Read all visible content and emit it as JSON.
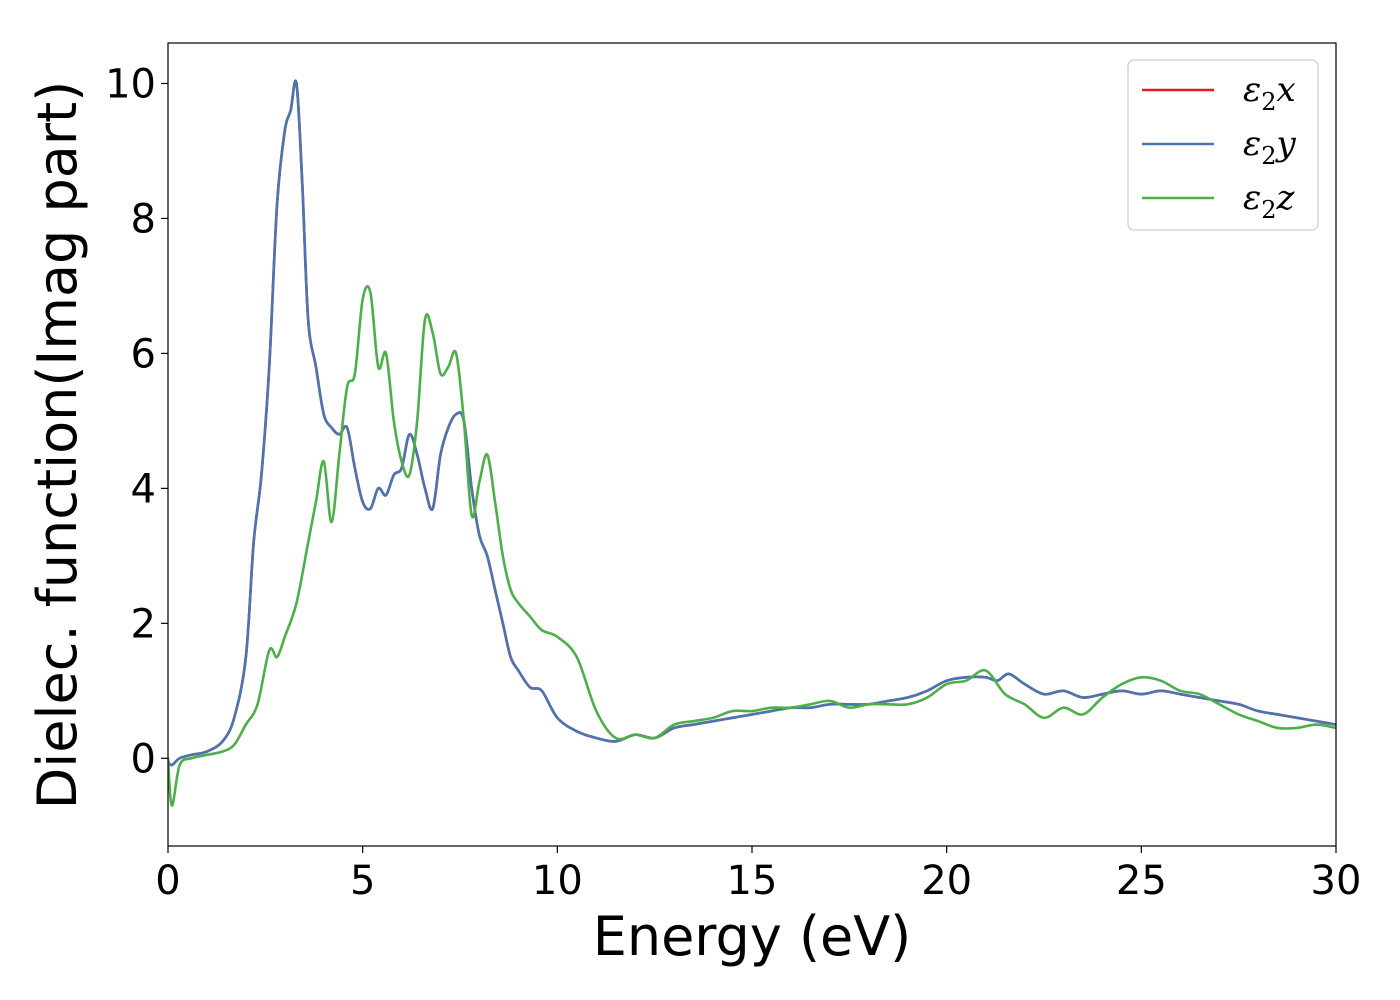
{
  "chart_data": {
    "type": "line",
    "title": "",
    "xlabel": "Energy (eV)",
    "ylabel": "Dielec. function(Imag part)",
    "xlim": [
      0,
      30
    ],
    "ylim": [
      -1.3,
      10.6
    ],
    "xticks": [
      0,
      5,
      10,
      15,
      20,
      25,
      30
    ],
    "yticks": [
      0,
      2,
      4,
      6,
      8,
      10
    ],
    "grid": false,
    "legend_position": "top-right",
    "series": [
      {
        "name": "ε2x",
        "label_base": "ε",
        "label_sub": "2",
        "label_var": "x",
        "color": "#e41a1c",
        "x": [
          0,
          0.1,
          0.3,
          0.6,
          1.0,
          1.4,
          1.7,
          2.0,
          2.2,
          2.4,
          2.6,
          2.8,
          3.0,
          3.15,
          3.3,
          3.45,
          3.6,
          3.8,
          4.0,
          4.2,
          4.4,
          4.6,
          4.8,
          5.0,
          5.2,
          5.4,
          5.6,
          5.8,
          6.0,
          6.2,
          6.4,
          6.6,
          6.8,
          7.0,
          7.2,
          7.4,
          7.6,
          7.8,
          8.0,
          8.2,
          8.4,
          8.6,
          8.8,
          9.0,
          9.3,
          9.6,
          10.0,
          10.5,
          11.0,
          11.5,
          12.0,
          12.5,
          13.0,
          13.5,
          14.0,
          14.5,
          15.0,
          15.5,
          16.0,
          16.5,
          17.0,
          17.5,
          18.0,
          18.5,
          19.0,
          19.5,
          20.0,
          20.5,
          21.0,
          21.3,
          21.6,
          22.0,
          22.5,
          23.0,
          23.5,
          24.0,
          24.5,
          25.0,
          25.5,
          26.0,
          26.5,
          27.0,
          27.5,
          28.0,
          28.5,
          29.0,
          29.5,
          30.0
        ],
        "values": [
          -0.05,
          -0.1,
          0.0,
          0.05,
          0.1,
          0.25,
          0.6,
          1.5,
          3.2,
          4.2,
          5.8,
          8.2,
          9.3,
          9.6,
          10.0,
          8.5,
          6.5,
          5.8,
          5.1,
          4.9,
          4.8,
          4.9,
          4.3,
          3.8,
          3.7,
          4.0,
          3.9,
          4.2,
          4.3,
          4.8,
          4.5,
          4.0,
          3.7,
          4.5,
          4.9,
          5.1,
          5.0,
          4.0,
          3.3,
          3.0,
          2.5,
          2.0,
          1.5,
          1.3,
          1.05,
          1.0,
          0.6,
          0.4,
          0.3,
          0.25,
          0.35,
          0.3,
          0.45,
          0.5,
          0.55,
          0.6,
          0.65,
          0.7,
          0.75,
          0.75,
          0.8,
          0.8,
          0.8,
          0.85,
          0.9,
          1.0,
          1.15,
          1.2,
          1.2,
          1.15,
          1.25,
          1.1,
          0.95,
          1.0,
          0.9,
          0.95,
          1.0,
          0.95,
          1.0,
          0.95,
          0.9,
          0.85,
          0.8,
          0.7,
          0.65,
          0.6,
          0.55,
          0.5
        ]
      },
      {
        "name": "ε2y",
        "label_base": "ε",
        "label_sub": "2",
        "label_var": "y",
        "color": "#4a75b0",
        "x": [
          0,
          0.1,
          0.3,
          0.6,
          1.0,
          1.4,
          1.7,
          2.0,
          2.2,
          2.4,
          2.6,
          2.8,
          3.0,
          3.15,
          3.3,
          3.45,
          3.6,
          3.8,
          4.0,
          4.2,
          4.4,
          4.6,
          4.8,
          5.0,
          5.2,
          5.4,
          5.6,
          5.8,
          6.0,
          6.2,
          6.4,
          6.6,
          6.8,
          7.0,
          7.2,
          7.4,
          7.6,
          7.8,
          8.0,
          8.2,
          8.4,
          8.6,
          8.8,
          9.0,
          9.3,
          9.6,
          10.0,
          10.5,
          11.0,
          11.5,
          12.0,
          12.5,
          13.0,
          13.5,
          14.0,
          14.5,
          15.0,
          15.5,
          16.0,
          16.5,
          17.0,
          17.5,
          18.0,
          18.5,
          19.0,
          19.5,
          20.0,
          20.5,
          21.0,
          21.3,
          21.6,
          22.0,
          22.5,
          23.0,
          23.5,
          24.0,
          24.5,
          25.0,
          25.5,
          26.0,
          26.5,
          27.0,
          27.5,
          28.0,
          28.5,
          29.0,
          29.5,
          30.0
        ],
        "values": [
          -0.05,
          -0.1,
          0.0,
          0.05,
          0.1,
          0.25,
          0.6,
          1.5,
          3.2,
          4.2,
          5.8,
          8.2,
          9.3,
          9.6,
          10.0,
          8.5,
          6.5,
          5.8,
          5.1,
          4.9,
          4.8,
          4.9,
          4.3,
          3.8,
          3.7,
          4.0,
          3.9,
          4.2,
          4.3,
          4.8,
          4.5,
          4.0,
          3.7,
          4.5,
          4.9,
          5.1,
          5.0,
          4.0,
          3.3,
          3.0,
          2.5,
          2.0,
          1.5,
          1.3,
          1.05,
          1.0,
          0.6,
          0.4,
          0.3,
          0.25,
          0.35,
          0.3,
          0.45,
          0.5,
          0.55,
          0.6,
          0.65,
          0.7,
          0.75,
          0.75,
          0.8,
          0.8,
          0.8,
          0.85,
          0.9,
          1.0,
          1.15,
          1.2,
          1.2,
          1.15,
          1.25,
          1.1,
          0.95,
          1.0,
          0.9,
          0.95,
          1.0,
          0.95,
          1.0,
          0.95,
          0.9,
          0.85,
          0.8,
          0.7,
          0.65,
          0.6,
          0.55,
          0.5
        ]
      },
      {
        "name": "ε2z",
        "label_base": "ε",
        "label_sub": "2",
        "label_var": "z",
        "color": "#4daf4a",
        "x": [
          0,
          0.1,
          0.3,
          0.6,
          1.0,
          1.4,
          1.7,
          2.0,
          2.3,
          2.6,
          2.8,
          3.0,
          3.3,
          3.6,
          3.8,
          4.0,
          4.2,
          4.4,
          4.6,
          4.8,
          5.0,
          5.2,
          5.4,
          5.6,
          5.8,
          6.0,
          6.2,
          6.4,
          6.6,
          6.8,
          7.0,
          7.2,
          7.4,
          7.6,
          7.8,
          8.0,
          8.2,
          8.4,
          8.6,
          8.8,
          9.0,
          9.3,
          9.6,
          10.0,
          10.5,
          11.0,
          11.5,
          12.0,
          12.5,
          13.0,
          13.5,
          14.0,
          14.5,
          15.0,
          15.5,
          16.0,
          16.5,
          17.0,
          17.5,
          18.0,
          18.5,
          19.0,
          19.5,
          20.0,
          20.5,
          21.0,
          21.5,
          22.0,
          22.5,
          23.0,
          23.5,
          24.0,
          24.5,
          25.0,
          25.5,
          26.0,
          26.5,
          27.0,
          27.5,
          28.0,
          28.5,
          29.0,
          29.5,
          30.0
        ],
        "values": [
          0.0,
          -0.7,
          -0.1,
          0.0,
          0.05,
          0.1,
          0.2,
          0.5,
          0.8,
          1.6,
          1.5,
          1.8,
          2.3,
          3.2,
          3.8,
          4.4,
          3.5,
          4.5,
          5.5,
          5.7,
          6.8,
          6.9,
          5.8,
          6.0,
          5.0,
          4.4,
          4.2,
          5.0,
          6.5,
          6.3,
          5.7,
          5.8,
          6.0,
          5.0,
          3.6,
          4.1,
          4.5,
          3.8,
          3.0,
          2.5,
          2.3,
          2.1,
          1.9,
          1.8,
          1.5,
          0.7,
          0.3,
          0.35,
          0.3,
          0.5,
          0.55,
          0.6,
          0.7,
          0.7,
          0.75,
          0.75,
          0.8,
          0.85,
          0.75,
          0.8,
          0.8,
          0.8,
          0.9,
          1.1,
          1.15,
          1.3,
          0.95,
          0.8,
          0.6,
          0.75,
          0.65,
          0.9,
          1.1,
          1.2,
          1.15,
          1.0,
          0.95,
          0.8,
          0.65,
          0.55,
          0.45,
          0.45,
          0.5,
          0.45
        ]
      }
    ]
  }
}
